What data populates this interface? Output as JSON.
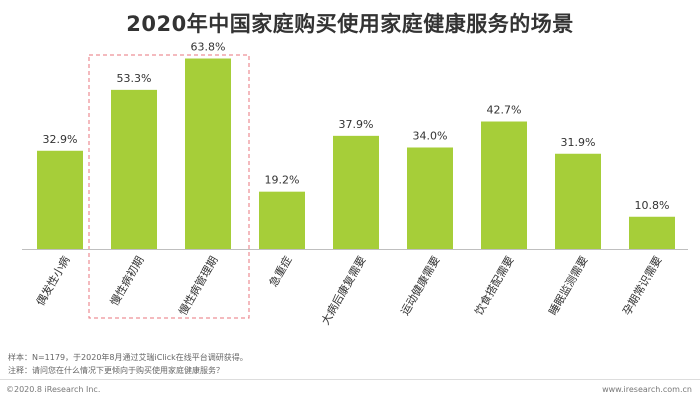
{
  "title": "2020年中国家庭购买使用家庭健康服务的场景",
  "chart_data": {
    "type": "bar",
    "title": "2020年中国家庭购买使用家庭健康服务的场景",
    "categories": [
      "偶发性小病",
      "慢性病初期",
      "慢性病管理期",
      "急重症",
      "大病后康复需要",
      "运动健康需要",
      "饮食搭配需要",
      "睡眠监测需要",
      "孕期常识需要"
    ],
    "values": [
      32.9,
      53.3,
      63.8,
      19.2,
      37.9,
      34.0,
      42.7,
      31.9,
      10.8
    ],
    "value_labels": [
      "32.9%",
      "53.3%",
      "63.8%",
      "19.2%",
      "37.9%",
      "34.0%",
      "42.7%",
      "31.9%",
      "10.8%"
    ],
    "unit": "%",
    "highlighted_categories": [
      "慢性病初期",
      "慢性病管理期"
    ],
    "bar_color": "#a6ce39",
    "highlight_color": "#e8747c",
    "ylim": [
      0,
      70
    ],
    "grid": false,
    "xlabel": "",
    "ylabel": ""
  },
  "footnotes": {
    "sample": "样本：N=1179，于2020年8月通过艾瑞iClick在线平台调研获得。",
    "note": "注释：请问您在什么情况下更倾向于购买使用家庭健康服务？"
  },
  "footer": {
    "copyright": "©2020.8 iResearch Inc.",
    "website": "www.iresearch.com.cn"
  }
}
